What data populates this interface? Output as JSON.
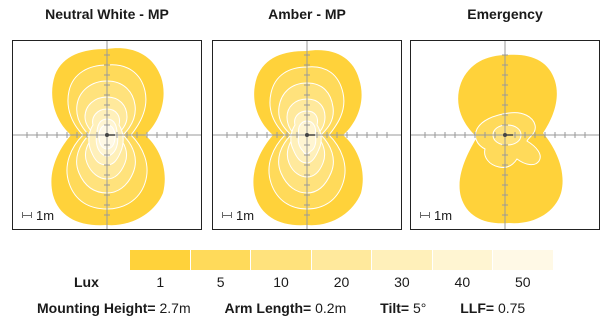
{
  "panels": [
    {
      "title": "Neutral White - MP",
      "scale": "1m"
    },
    {
      "title": "Amber - MP",
      "scale": "1m"
    },
    {
      "title": "Emergency",
      "scale": "1m"
    }
  ],
  "legend": {
    "title": "Lux",
    "levels": [
      {
        "value": "1",
        "color": "#ffd23a"
      },
      {
        "value": "5",
        "color": "#ffda5a"
      },
      {
        "value": "10",
        "color": "#ffe27c"
      },
      {
        "value": "20",
        "color": "#ffe99c"
      },
      {
        "value": "30",
        "color": "#fff0ba"
      },
      {
        "value": "40",
        "color": "#fff5d2"
      },
      {
        "value": "50",
        "color": "#fff9e6"
      }
    ]
  },
  "params": {
    "mounting_height": {
      "label": "Mounting Height=",
      "value": "2.7m"
    },
    "arm_length": {
      "label": "Arm Length=",
      "value": "0.2m"
    },
    "tilt": {
      "label": "Tilt=",
      "value": "5°"
    },
    "llf": {
      "label": "LLF=",
      "value": "0.75"
    }
  }
}
